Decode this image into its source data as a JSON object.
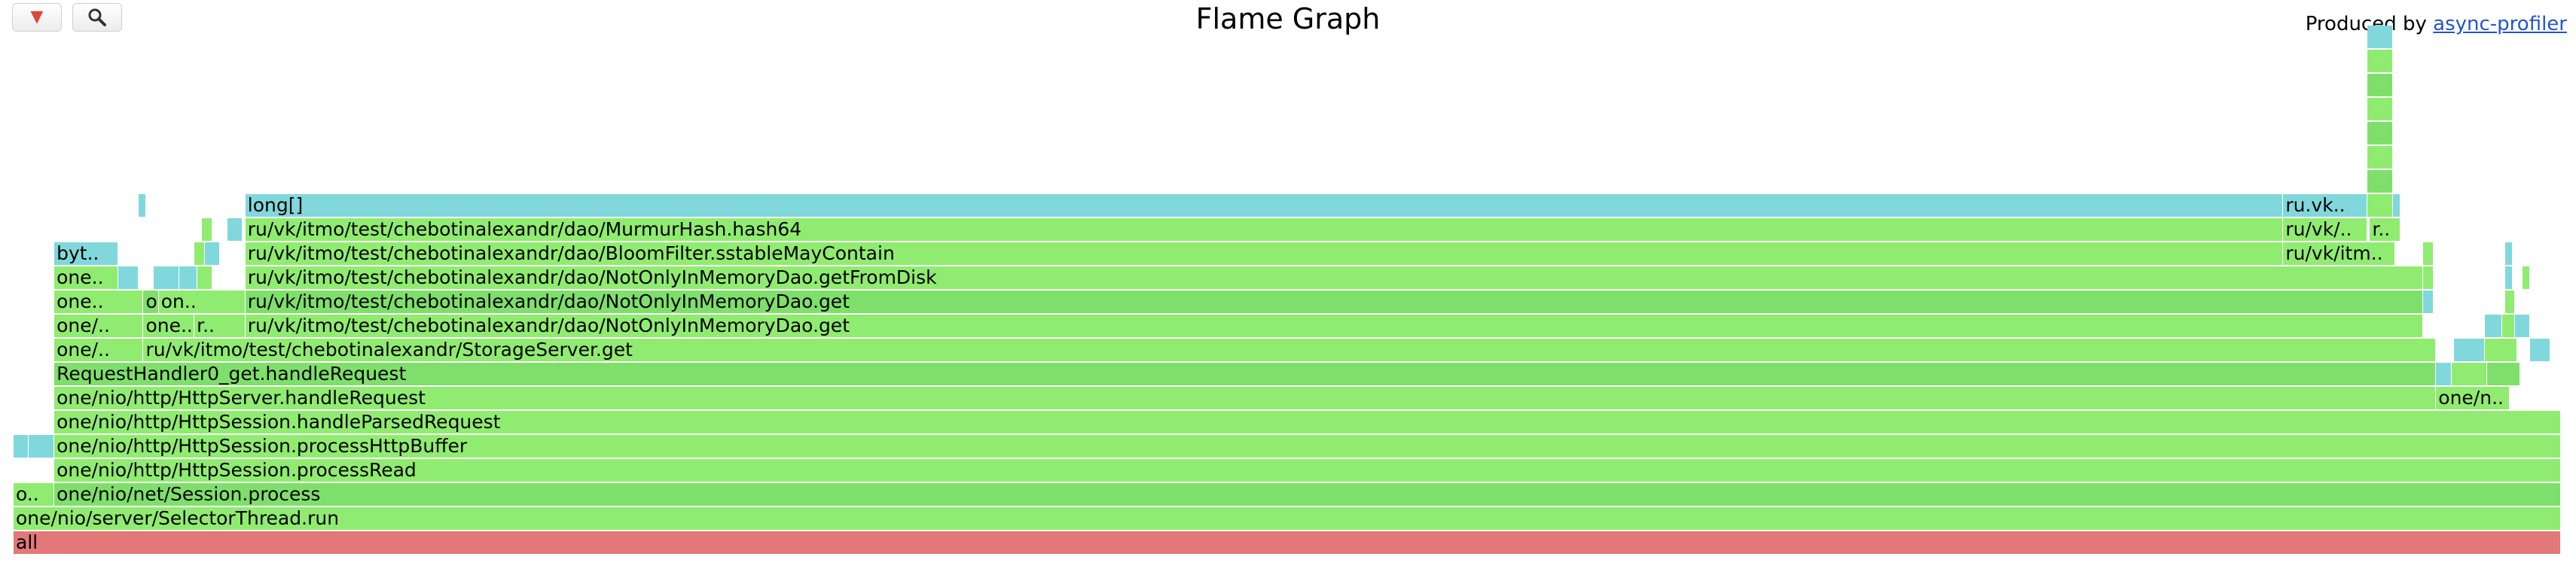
{
  "title": "Flame Graph",
  "produced_by": {
    "prefix": "Produced by ",
    "link": "async-profiler"
  },
  "toolbar": {
    "collapse_symbol": "▼",
    "search_symbol": "🔍"
  },
  "colors": {
    "root": "#e27877",
    "java": "#90ec70",
    "java_dark": "#7ee06a",
    "native": "#80d8dc",
    "link": "#2255cc"
  },
  "frames": [
    {
      "text": "all",
      "color": "root",
      "level": 0,
      "x": 0,
      "w": 1
    },
    {
      "text": "one/nio/server/SelectorThread.run",
      "color": "java",
      "level": 1,
      "x": 0,
      "w": 1
    },
    {
      "text": "o..",
      "color": "java",
      "level": 2,
      "x": 0,
      "w": 0.016
    },
    {
      "text": "one/nio/net/Session.process",
      "color": "java_dark",
      "level": 2,
      "x": 0.016,
      "w": 0.984
    },
    {
      "text": "one/nio/http/HttpSession.processRead",
      "color": "java",
      "level": 3,
      "x": 0.016,
      "w": 0.984
    },
    {
      "text": "",
      "color": "native",
      "level": 4,
      "x": 0,
      "w": 0.006
    },
    {
      "text": "",
      "color": "native",
      "level": 4,
      "x": 0.006,
      "w": 0.01
    },
    {
      "text": "one/nio/http/HttpSession.processHttpBuffer",
      "color": "java",
      "level": 4,
      "x": 0.016,
      "w": 0.984
    },
    {
      "text": "one/nio/http/HttpSession.handleParsedRequest",
      "color": "java",
      "level": 5,
      "x": 0.016,
      "w": 0.984
    },
    {
      "text": "one/n..",
      "color": "java",
      "level": 6,
      "x": 0.951,
      "w": 0.029
    },
    {
      "text": "one/nio/http/HttpServer.handleRequest",
      "color": "java",
      "level": 6,
      "x": 0.016,
      "w": 0.935
    },
    {
      "text": "",
      "color": "native",
      "level": 7,
      "x": 0.951,
      "w": 0.006
    },
    {
      "text": "",
      "color": "java",
      "level": 7,
      "x": 0.957,
      "w": 0.014
    },
    {
      "text": "",
      "color": "java_dark",
      "level": 7,
      "x": 0.971,
      "w": 0.013
    },
    {
      "text": "RequestHandler0_get.handleRequest",
      "color": "java_dark",
      "level": 7,
      "x": 0.016,
      "w": 0.935
    },
    {
      "text": "",
      "color": "native",
      "level": 8,
      "x": 0.958,
      "w": 0.012
    },
    {
      "text": "",
      "color": "java",
      "level": 8,
      "x": 0.97,
      "w": 0.013
    },
    {
      "text": "",
      "color": "native",
      "level": 8,
      "x": 0.988,
      "w": 0.008
    },
    {
      "text": "one/..",
      "color": "java",
      "level": 8,
      "x": 0.016,
      "w": 0.035
    },
    {
      "text": "ru/vk/itmo/test/chebotinalexandr/StorageServer.get",
      "color": "java",
      "level": 8,
      "x": 0.051,
      "w": 0.9
    },
    {
      "text": "one/..",
      "color": "java",
      "level": 9,
      "x": 0.016,
      "w": 0.035
    },
    {
      "text": "one..",
      "color": "java",
      "level": 9,
      "x": 0.051,
      "w": 0.02
    },
    {
      "text": "r..",
      "color": "java",
      "level": 9,
      "x": 0.071,
      "w": 0.02
    },
    {
      "text": "ru/vk/itmo/test/chebotinalexandr/dao/NotOnlyInMemoryDao.get",
      "color": "java",
      "level": 9,
      "x": 0.091,
      "w": 0.855
    },
    {
      "text": "",
      "color": "native",
      "level": 9,
      "x": 0.97,
      "w": 0.007
    },
    {
      "text": "",
      "color": "java",
      "level": 9,
      "x": 0.977,
      "w": 0.005
    },
    {
      "text": "",
      "color": "native",
      "level": 9,
      "x": 0.982,
      "w": 0.006
    },
    {
      "text": "one..",
      "color": "java",
      "level": 10,
      "x": 0.016,
      "w": 0.035
    },
    {
      "text": "on..",
      "color": "java_dark",
      "level": 10,
      "x": 0.051,
      "w": 0.006
    },
    {
      "text": "on..",
      "color": "java",
      "level": 10,
      "x": 0.057,
      "w": 0.034
    },
    {
      "text": "ru/vk/itmo/test/chebotinalexandr/dao/NotOnlyInMemoryDao.get",
      "color": "java_dark",
      "level": 10,
      "x": 0.091,
      "w": 0.855
    },
    {
      "text": "",
      "color": "native",
      "level": 10,
      "x": 0.946,
      "w": 0.004
    },
    {
      "text": "",
      "color": "java",
      "level": 10,
      "x": 0.978,
      "w": 0.004
    },
    {
      "text": "one..",
      "color": "java",
      "level": 11,
      "x": 0.016,
      "w": 0.025
    },
    {
      "text": "",
      "color": "native",
      "level": 11,
      "x": 0.041,
      "w": 0.008
    },
    {
      "text": "",
      "color": "native",
      "level": 11,
      "x": 0.055,
      "w": 0.01
    },
    {
      "text": "",
      "color": "native",
      "level": 11,
      "x": 0.065,
      "w": 0.007
    },
    {
      "text": "",
      "color": "java",
      "level": 11,
      "x": 0.072,
      "w": 0.006
    },
    {
      "text": "ru/vk/itmo/test/chebotinalexandr/dao/NotOnlyInMemoryDao.getFromDisk",
      "color": "java",
      "level": 11,
      "x": 0.091,
      "w": 0.855
    },
    {
      "text": "",
      "color": "java",
      "level": 11,
      "x": 0.946,
      "w": 0.004
    },
    {
      "text": "",
      "color": "native",
      "level": 11,
      "x": 0.978,
      "w": 0.003
    },
    {
      "text": "",
      "color": "java",
      "level": 11,
      "x": 0.985,
      "w": 0.003
    },
    {
      "text": "byt..",
      "color": "native",
      "level": 12,
      "x": 0.016,
      "w": 0.025
    },
    {
      "text": "",
      "color": "java",
      "level": 12,
      "x": 0.071,
      "w": 0.004
    },
    {
      "text": "",
      "color": "native",
      "level": 12,
      "x": 0.075,
      "w": 0.006
    },
    {
      "text": "ru/vk/itmo/test/chebotinalexandr/dao/BloomFilter.sstableMayContain",
      "color": "java",
      "level": 12,
      "x": 0.091,
      "w": 0.8
    },
    {
      "text": "ru/vk/itm..",
      "color": "java",
      "level": 12,
      "x": 0.891,
      "w": 0.044
    },
    {
      "text": "",
      "color": "java",
      "level": 12,
      "x": 0.946,
      "w": 0.004
    },
    {
      "text": "",
      "color": "native",
      "level": 12,
      "x": 0.978,
      "w": 0.003
    },
    {
      "text": "",
      "color": "java",
      "level": 13,
      "x": 0.074,
      "w": 0.004
    },
    {
      "text": "",
      "color": "native",
      "level": 13,
      "x": 0.084,
      "w": 0.006
    },
    {
      "text": "ru/vk/itmo/test/chebotinalexandr/dao/MurmurHash.hash64",
      "color": "java",
      "level": 13,
      "x": 0.091,
      "w": 0.8
    },
    {
      "text": "ru/vk/..",
      "color": "java",
      "level": 13,
      "x": 0.891,
      "w": 0.033
    },
    {
      "text": "r..",
      "color": "java",
      "level": 13,
      "x": 0.925,
      "w": 0.012
    },
    {
      "text": "",
      "color": "native",
      "level": 14,
      "x": 0.049,
      "w": 0.003
    },
    {
      "text": "long[]",
      "color": "native",
      "level": 14,
      "x": 0.091,
      "w": 0.8
    },
    {
      "text": "ru.vk..",
      "color": "native",
      "level": 14,
      "x": 0.891,
      "w": 0.033
    },
    {
      "text": "",
      "color": "java",
      "level": 14,
      "x": 0.924,
      "w": 0.01
    },
    {
      "text": "",
      "color": "native",
      "level": 14,
      "x": 0.934,
      "w": 0.003
    },
    {
      "text": "",
      "color": "java_dark",
      "level": 15,
      "x": 0.924,
      "w": 0.01
    },
    {
      "text": "",
      "color": "java",
      "level": 16,
      "x": 0.924,
      "w": 0.01
    },
    {
      "text": "",
      "color": "java_dark",
      "level": 17,
      "x": 0.924,
      "w": 0.01
    },
    {
      "text": "",
      "color": "java",
      "level": 18,
      "x": 0.924,
      "w": 0.01
    },
    {
      "text": "",
      "color": "java_dark",
      "level": 19,
      "x": 0.924,
      "w": 0.01
    },
    {
      "text": "",
      "color": "java",
      "level": 20,
      "x": 0.924,
      "w": 0.01
    },
    {
      "text": "",
      "color": "native",
      "level": 21,
      "x": 0.924,
      "w": 0.01
    }
  ]
}
